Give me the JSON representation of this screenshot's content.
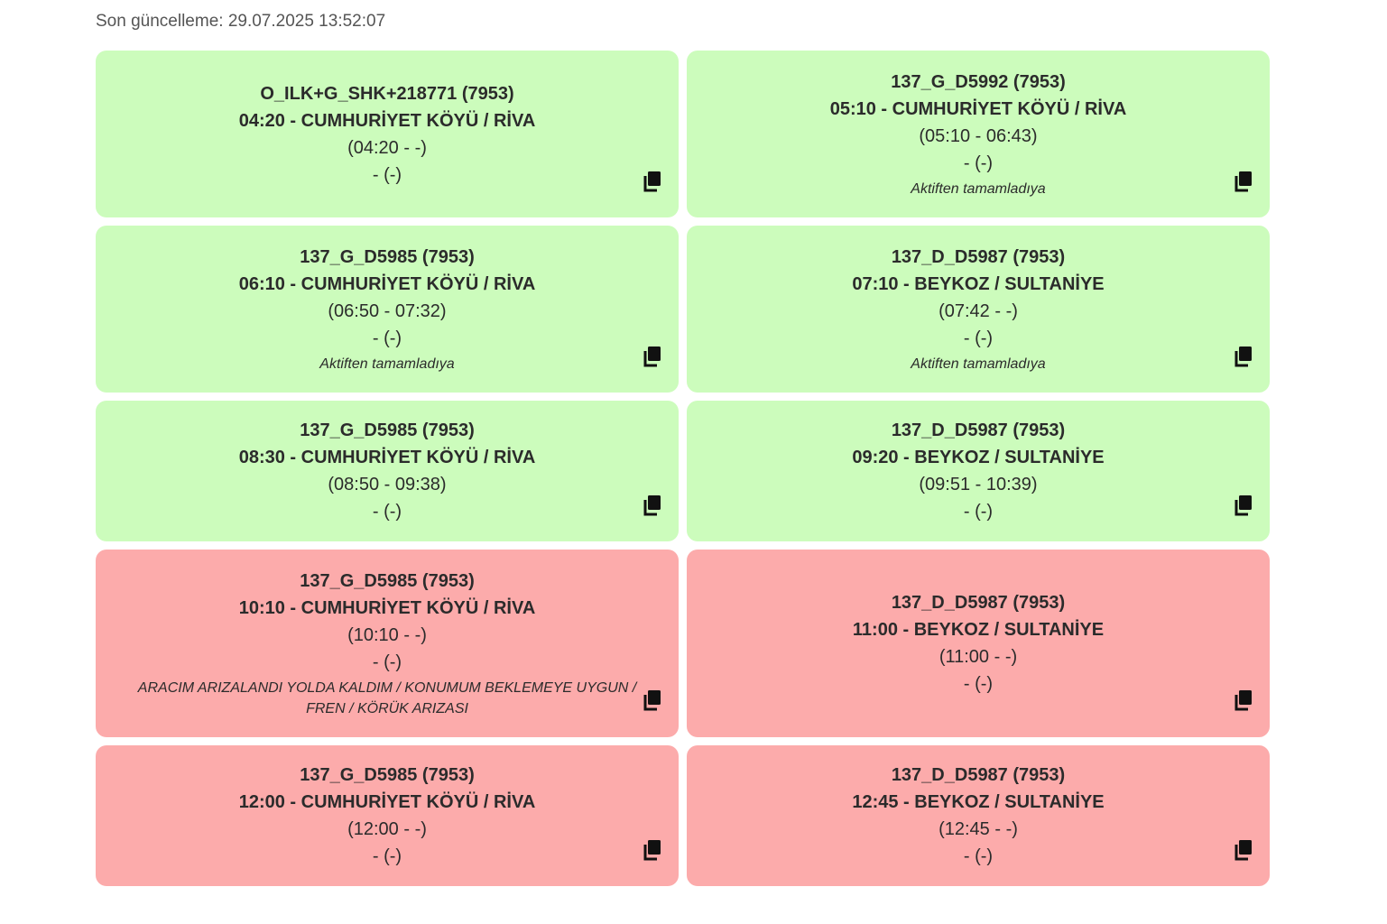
{
  "header": {
    "last_update": "Son güncelleme: 29.07.2025 13:52:07"
  },
  "icons": {
    "copy": "copy-icon"
  },
  "colors": {
    "success": "#ccfcbc",
    "failure": "#fcabab"
  },
  "trips": [
    {
      "title": "O_ILK+G_SHK+218771 (7953)",
      "route": "04:20 - CUMHURİYET KÖYÜ / RİVA",
      "times": "(04:20 - -)",
      "actual": "- (-)",
      "note": "",
      "status": "ok"
    },
    {
      "title": "137_G_D5992 (7953)",
      "route": "05:10 - CUMHURİYET KÖYÜ / RİVA",
      "times": "(05:10 - 06:43)",
      "actual": "- (-)",
      "note": "Aktiften tamamladıya",
      "status": "ok"
    },
    {
      "title": "137_G_D5985 (7953)",
      "route": "06:10 - CUMHURİYET KÖYÜ / RİVA",
      "times": "(06:50 - 07:32)",
      "actual": "- (-)",
      "note": "Aktiften tamamladıya",
      "status": "ok"
    },
    {
      "title": "137_D_D5987 (7953)",
      "route": "07:10 - BEYKOZ / SULTANİYE",
      "times": "(07:42 - -)",
      "actual": "- (-)",
      "note": "Aktiften tamamladıya",
      "status": "ok"
    },
    {
      "title": "137_G_D5985 (7953)",
      "route": "08:30 - CUMHURİYET KÖYÜ / RİVA",
      "times": "(08:50 - 09:38)",
      "actual": "- (-)",
      "note": "",
      "status": "ok"
    },
    {
      "title": "137_D_D5987 (7953)",
      "route": "09:20 - BEYKOZ / SULTANİYE",
      "times": "(09:51 - 10:39)",
      "actual": "- (-)",
      "note": "",
      "status": "ok"
    },
    {
      "title": "137_G_D5985 (7953)",
      "route": "10:10 - CUMHURİYET KÖYÜ / RİVA",
      "times": "(10:10 - -)",
      "actual": "- (-)",
      "note": "ARACIM ARIZALANDI YOLDA KALDIM / KONUMUM BEKLEMEYE UYGUN / FREN / KÖRÜK ARIZASI",
      "status": "bad"
    },
    {
      "title": "137_D_D5987 (7953)",
      "route": "11:00 - BEYKOZ / SULTANİYE",
      "times": "(11:00 - -)",
      "actual": "- (-)",
      "note": "",
      "status": "bad"
    },
    {
      "title": "137_G_D5985 (7953)",
      "route": "12:00 - CUMHURİYET KÖYÜ / RİVA",
      "times": "(12:00 - -)",
      "actual": "- (-)",
      "note": "",
      "status": "bad"
    },
    {
      "title": "137_D_D5987 (7953)",
      "route": "12:45 - BEYKOZ / SULTANİYE",
      "times": "(12:45 - -)",
      "actual": "- (-)",
      "note": "",
      "status": "bad"
    }
  ]
}
